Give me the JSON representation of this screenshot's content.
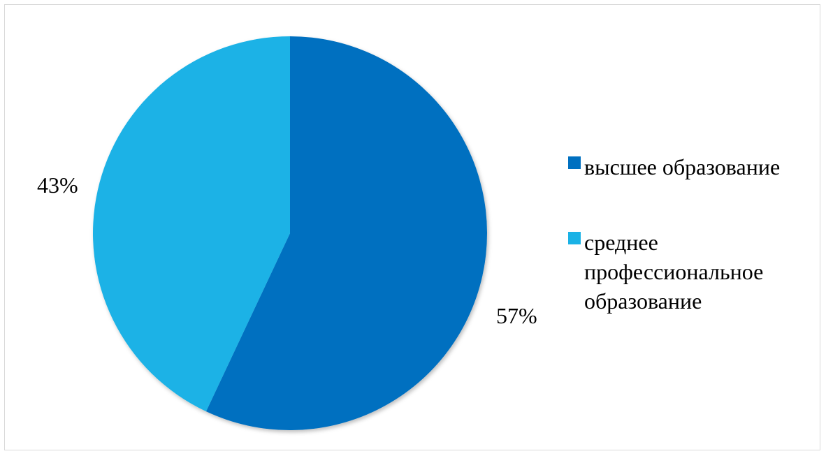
{
  "chart_data": {
    "type": "pie",
    "title": "",
    "start_angle_deg": 0,
    "direction": "clockwise",
    "legend_position": "right",
    "slices": [
      {
        "name": "высшее образование",
        "value": 57,
        "label": "57%",
        "color": "#0070c0"
      },
      {
        "name": "среднее профессиональное образование",
        "value": 43,
        "label": "43%",
        "color": "#1ab2e6"
      }
    ]
  }
}
